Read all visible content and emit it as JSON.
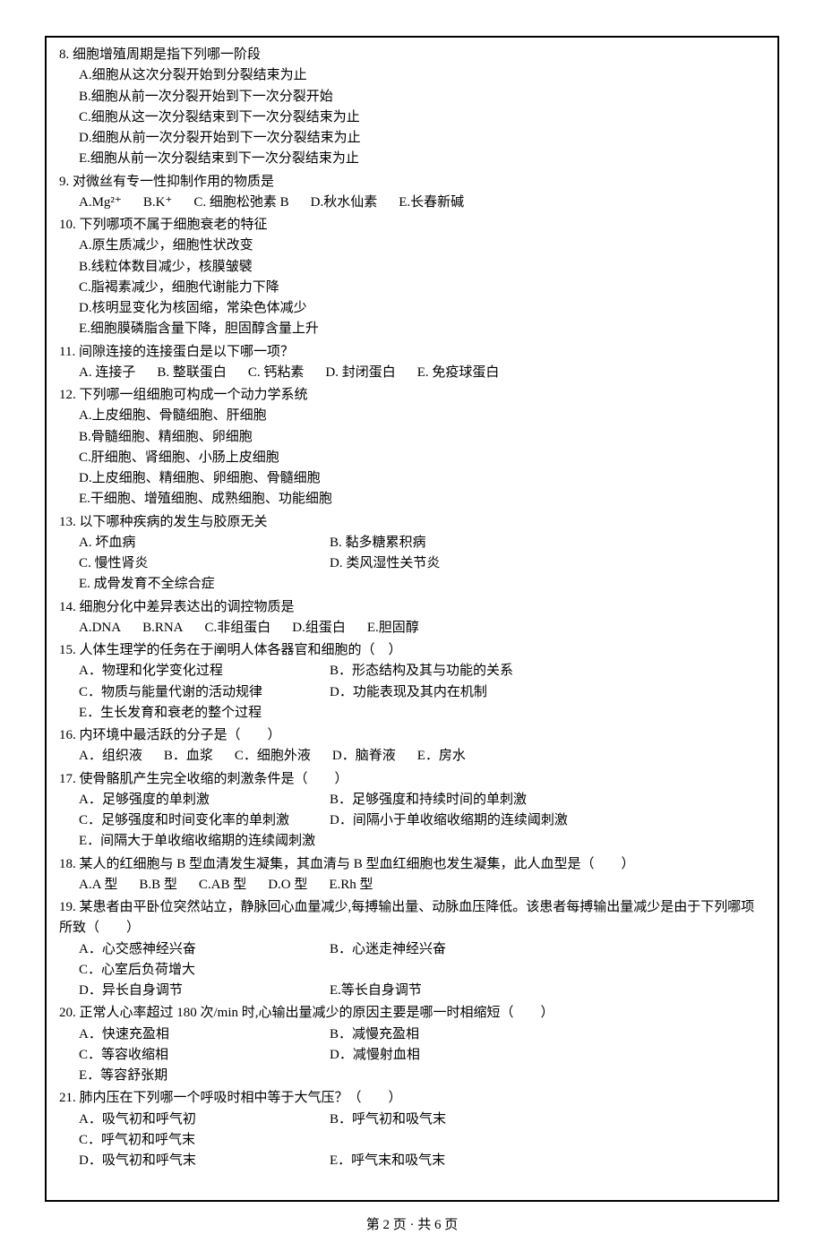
{
  "questions": [
    {
      "num": "8",
      "stem": "细胞增殖周期是指下列哪一阶段",
      "options_block": [
        "A.细胞从这次分裂开始到分裂结束为止",
        "B.细胞从前一次分裂开始到下一次分裂开始",
        "C.细胞从这一次分裂结束到下一次分裂结束为止",
        "D.细胞从前一次分裂开始到下一次分裂结束为止",
        "E.细胞从前一次分裂结束到下一次分裂结束为止"
      ]
    },
    {
      "num": "9",
      "stem": "对微丝有专一性抑制作用的物质是",
      "options_inline": [
        "A.Mg²⁺",
        "B.K⁺",
        "C. 细胞松弛素 B",
        "D.秋水仙素",
        "E.长春新碱"
      ]
    },
    {
      "num": "10",
      "stem": "下列哪项不属于细胞衰老的特征",
      "options_block": [
        "A.原生质减少，细胞性状改变",
        "B.线粒体数目减少，核膜皱襞",
        "C.脂褐素减少，细胞代谢能力下降",
        "D.核明显变化为核固缩，常染色体减少",
        "E.细胞膜磷脂含量下降，胆固醇含量上升"
      ]
    },
    {
      "num": "11",
      "stem": "间隙连接的连接蛋白是以下哪一项？",
      "options_inline": [
        "A. 连接子",
        "B. 整联蛋白",
        "C. 钙粘素",
        "D. 封闭蛋白",
        "E. 免疫球蛋白"
      ]
    },
    {
      "num": "12",
      "stem": "下列哪一组细胞可构成一个动力学系统",
      "options_block": [
        "A.上皮细胞、骨髓细胞、肝细胞",
        "B.骨髓细胞、精细胞、卵细胞",
        "C.肝细胞、肾细胞、小肠上皮细胞",
        "D.上皮细胞、精细胞、卵细胞、骨髓细胞",
        "E.干细胞、增殖细胞、成熟细胞、功能细胞"
      ]
    },
    {
      "num": "13",
      "stem": "以下哪种疾病的发生与胶原无关",
      "options_two_row": [
        [
          "A. 坏血病",
          "B. 黏多糖累积病",
          "C. 慢性肾炎",
          "D. 类风湿性关节炎"
        ],
        [
          "E. 成骨发育不全综合症"
        ]
      ]
    },
    {
      "num": "14",
      "stem": "细胞分化中差异表达出的调控物质是",
      "options_inline": [
        "A.DNA",
        "B.RNA",
        "C.非组蛋白",
        "D.组蛋白",
        "E.胆固醇"
      ]
    },
    {
      "num": "15",
      "stem": "人体生理学的任务在于阐明人体各器官和细胞的（　）",
      "options_two_row": [
        [
          "A．物理和化学变化过程",
          "B．形态结构及其与功能的关系"
        ],
        [
          "C．物质与能量代谢的活动规律",
          "D．功能表现及其内在机制"
        ],
        [
          "E．生长发育和衰老的整个过程"
        ]
      ]
    },
    {
      "num": "16",
      "stem": "内环境中最活跃的分子是（　　）",
      "options_inline": [
        "A．组织液",
        "B．血浆",
        "C．细胞外液",
        "D．脑脊液",
        "E．房水"
      ]
    },
    {
      "num": "17",
      "stem": "使骨骼肌产生完全收缩的刺激条件是（　　）",
      "options_two_row": [
        [
          "A．足够强度的单刺激",
          "B．足够强度和持续时间的单刺激"
        ],
        [
          "C．足够强度和时间变化率的单刺激",
          "D．间隔小于单收缩收缩期的连续阈刺激"
        ],
        [
          "E．间隔大于单收缩收缩期的连续阈刺激"
        ]
      ]
    },
    {
      "num": "18",
      "stem": "某人的红细胞与 B 型血清发生凝集，其血清与 B 型血红细胞也发生凝集，此人血型是（　　）",
      "options_inline": [
        "A.A 型",
        "B.B 型",
        "C.AB 型",
        "D.O 型",
        "E.Rh 型"
      ]
    },
    {
      "num": "19",
      "stem": "某患者由平卧位突然站立，静脉回心血量减少,每搏输出量、动脉血压降低。该患者每搏输出量减少是由于下列哪项所致（　　）",
      "options_two_row": [
        [
          "A．心交感神经兴奋",
          "B．心迷走神经兴奋",
          "C．心室后负荷增大"
        ],
        [
          "D．异长自身调节",
          "E.等长自身调节"
        ]
      ]
    },
    {
      "num": "20",
      "stem": "正常人心率超过 180 次/min 时,心输出量减少的原因主要是哪一时相缩短（　　）",
      "options_two_row": [
        [
          "A．快速充盈相",
          "B．减慢充盈相",
          "C．等容收缩相",
          "D．减慢射血相"
        ],
        [
          "E．等容舒张期"
        ]
      ]
    },
    {
      "num": "21",
      "stem": "肺内压在下列哪一个呼吸时相中等于大气压？（　　）",
      "options_two_row": [
        [
          "A．吸气初和呼气初",
          "B．呼气初和吸气末",
          "C．呼气初和呼气末"
        ],
        [
          "D．吸气初和呼气末",
          "E．呼气末和吸气末"
        ]
      ]
    }
  ],
  "footer": "第 2 页 · 共 6 页"
}
